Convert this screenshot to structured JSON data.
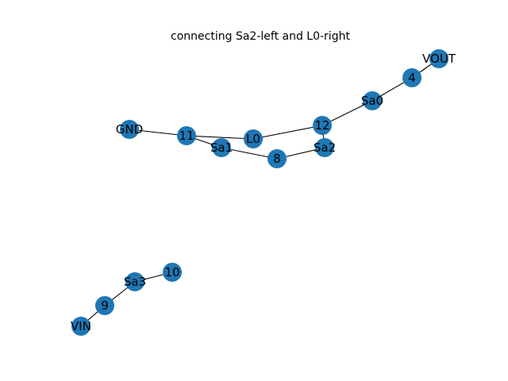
{
  "figure": {
    "title": "connecting Sa2-left and L0-right",
    "node_color": "#1f77b4",
    "edge_color": "#000000",
    "label_color": "#000000"
  },
  "graph": {
    "nodes": [
      "VOUT",
      "4",
      "Sa0",
      "12",
      "Sa2",
      "L0",
      "8",
      "Sa1",
      "11",
      "GND",
      "10",
      "Sa3",
      "9",
      "VIN"
    ],
    "edges": [
      [
        "VOUT",
        "4"
      ],
      [
        "4",
        "Sa0"
      ],
      [
        "Sa0",
        "12"
      ],
      [
        "12",
        "Sa2"
      ],
      [
        "12",
        "L0"
      ],
      [
        "L0",
        "11"
      ],
      [
        "11",
        "GND"
      ],
      [
        "11",
        "Sa1"
      ],
      [
        "Sa1",
        "8"
      ],
      [
        "8",
        "Sa2"
      ],
      [
        "10",
        "Sa3"
      ],
      [
        "Sa3",
        "9"
      ],
      [
        "9",
        "VIN"
      ]
    ]
  }
}
